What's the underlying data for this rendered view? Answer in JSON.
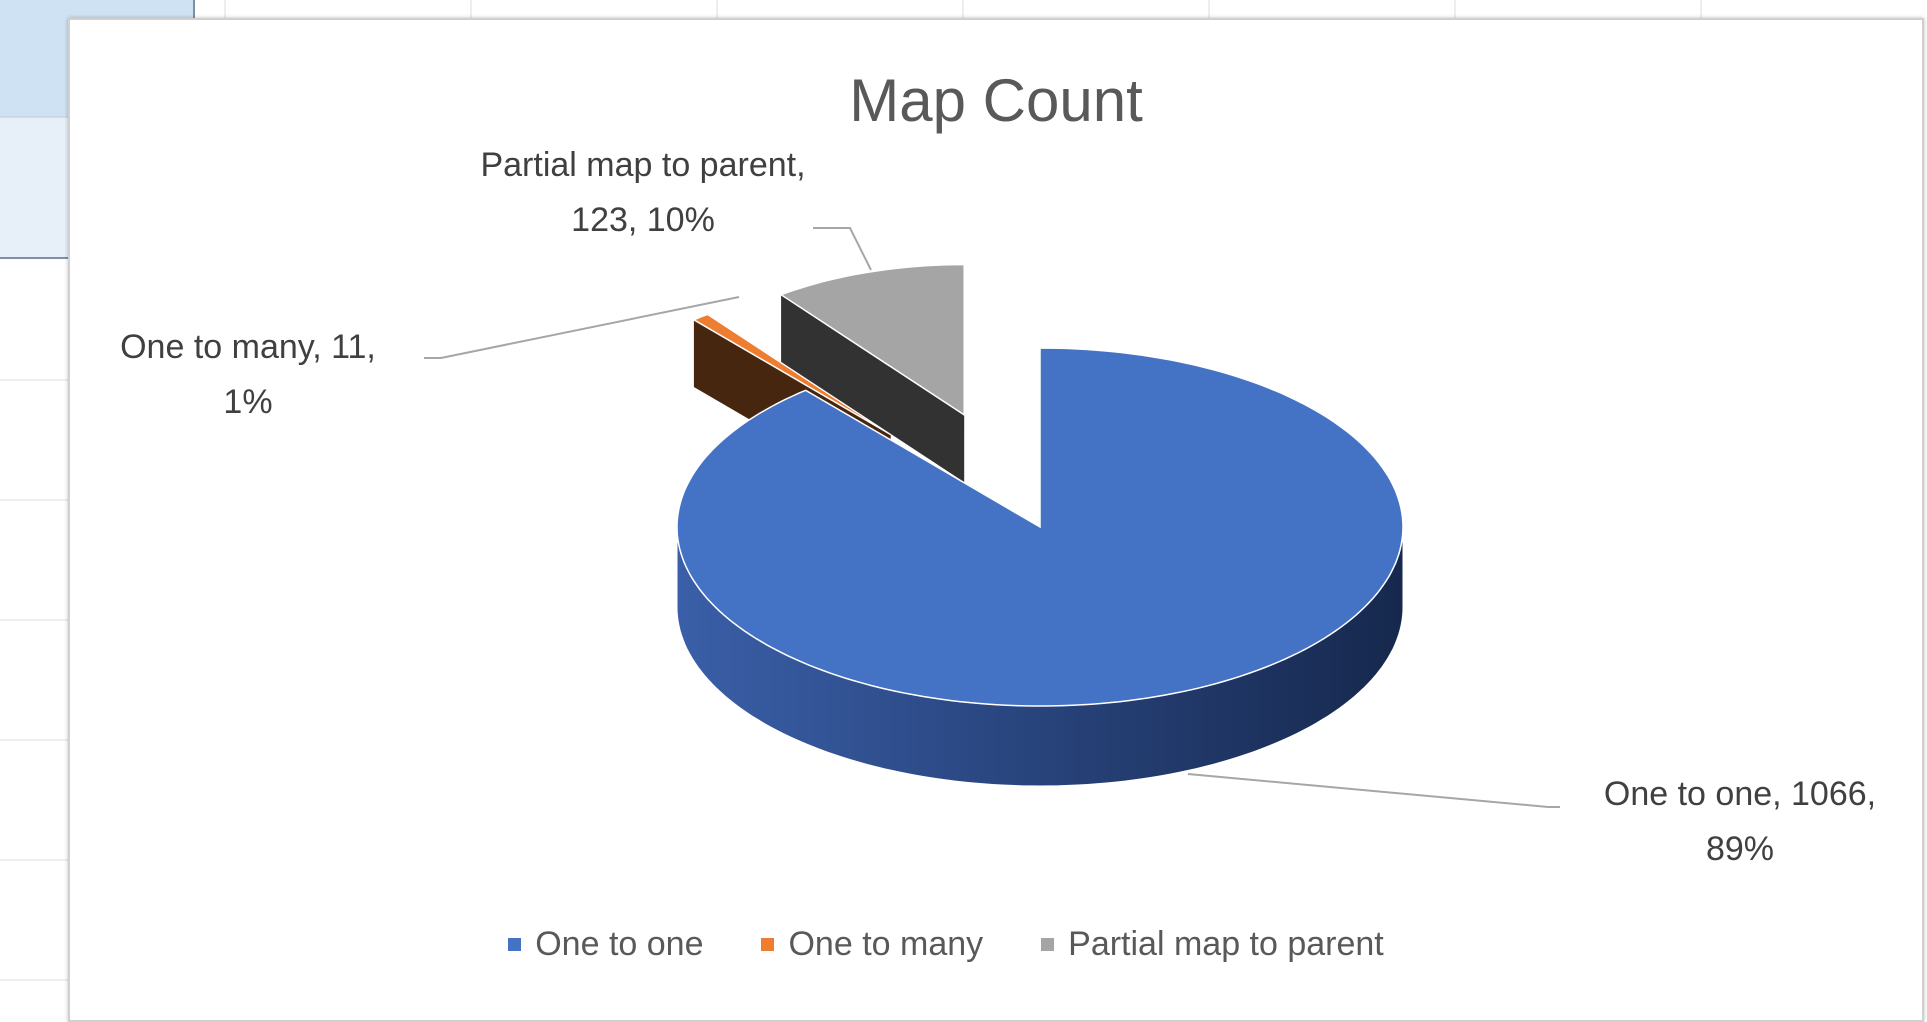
{
  "chart_data": {
    "type": "pie",
    "title": "Map Count",
    "categories": [
      "One to one",
      "One to many",
      "Partial map to parent"
    ],
    "values": [
      1066,
      11,
      123
    ],
    "value_labels": [
      "One to one, 1066, 89%",
      "One to many, 11, 1%",
      "Partial map to parent, 123, 10%"
    ],
    "colors": [
      "#4472c4",
      "#ed7d31",
      "#a5a5a5"
    ],
    "legend": "bottom"
  }
}
